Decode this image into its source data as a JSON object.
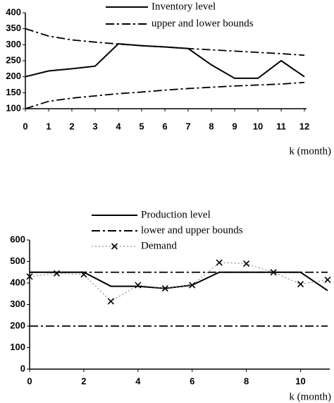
{
  "chart_data": [
    {
      "type": "line",
      "x": [
        0,
        1,
        2,
        3,
        4,
        5,
        6,
        7,
        8,
        9,
        10,
        11,
        12
      ],
      "xlabel": "k (month)",
      "xlim": [
        0,
        12
      ],
      "xticks": [
        0,
        1,
        2,
        3,
        4,
        5,
        6,
        7,
        8,
        9,
        10,
        11,
        12
      ],
      "ylim": [
        100,
        400
      ],
      "yticks": [
        100,
        150,
        200,
        250,
        300,
        350,
        400
      ],
      "series": [
        {
          "name": "Inventory level",
          "color": "#000000",
          "style": "solid",
          "values": [
            200,
            218,
            225,
            233,
            303,
            297,
            293,
            288,
            237,
            195,
            195,
            250,
            200
          ]
        },
        {
          "name": "upper and lower bounds",
          "color": "#000000",
          "style": "dashdot",
          "upper": [
            350,
            327,
            315,
            308,
            302,
            297,
            293,
            288,
            284,
            280,
            276,
            272,
            267
          ],
          "lower": [
            100,
            123,
            133,
            140,
            147,
            152,
            158,
            163,
            167,
            171,
            174,
            177,
            182
          ]
        }
      ]
    },
    {
      "type": "line",
      "x": [
        0,
        1,
        2,
        3,
        4,
        5,
        6,
        7,
        8,
        9,
        10,
        11
      ],
      "xlabel": "k (month)",
      "xlim": [
        0,
        11
      ],
      "xticks": [
        0,
        2,
        4,
        6,
        8,
        10
      ],
      "ylim": [
        0,
        600
      ],
      "yticks": [
        0,
        100,
        200,
        300,
        400,
        500,
        600
      ],
      "series": [
        {
          "name": "Production level",
          "color": "#000000",
          "style": "solid",
          "values": [
            450,
            450,
            450,
            385,
            385,
            375,
            390,
            450,
            450,
            450,
            450,
            365
          ]
        },
        {
          "name": "lower and upper bounds",
          "color": "#000000",
          "style": "dashdot",
          "lower": [
            200,
            200,
            200,
            200,
            200,
            200,
            200,
            200,
            200,
            200,
            200,
            200
          ],
          "upper": [
            450,
            450,
            450,
            450,
            450,
            450,
            450,
            450,
            450,
            450,
            450,
            450
          ]
        },
        {
          "name": "Demand",
          "color": "#777777",
          "style": "dotted-x",
          "values": [
            430,
            445,
            440,
            315,
            390,
            375,
            390,
            495,
            490,
            450,
            395,
            415
          ]
        }
      ]
    }
  ]
}
